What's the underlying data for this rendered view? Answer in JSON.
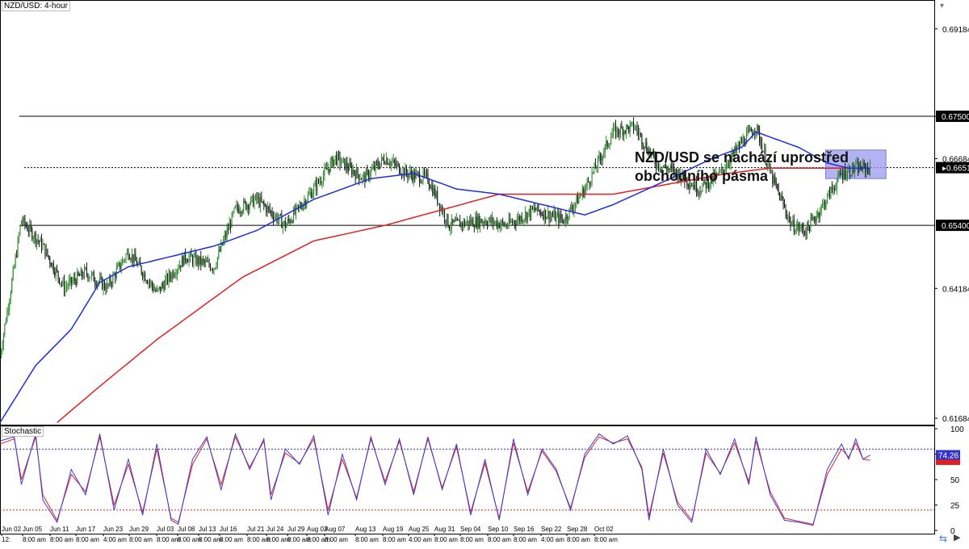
{
  "header": {
    "title": "NZD/USD: 4-hour",
    "stochastic_label": "Stochastic"
  },
  "annotation": {
    "line1": "NZD/USD se nachází uprostřed",
    "line2": "obchodního pásma"
  },
  "colors": {
    "bull": "#2e8b2e",
    "bear": "#1a1a1a",
    "sma_fast": "#1f2ed8",
    "sma_slow": "#e02020",
    "stoch_k": "#3b3bd6",
    "stoch_d": "#e02020",
    "highlight": "#9a9af0",
    "price_tag": "#000000"
  },
  "chart_data": [
    {
      "type": "candlestick",
      "title": "NZD/USD: 4-hour",
      "x_labels": [
        "Jun 02",
        "Jun 05",
        "Jun 11",
        "Jun 17",
        "Jun 23",
        "Jun 29",
        "Jul 03",
        "Jul 08",
        "Jul 13",
        "Jul 16",
        "Jul 21",
        "Jul 24",
        "Jul 29",
        "Aug 03",
        "Aug 07",
        "Aug 13",
        "Aug 19",
        "Aug 25",
        "Aug 31",
        "Sep 04",
        "Sep 10",
        "Sep 16",
        "Sep 22",
        "Sep 28",
        "Oct 02"
      ],
      "time_labels": [
        "12:",
        "8:00 am",
        "8:00 am",
        "8:00 am",
        "4:00 am",
        "8:00 am",
        "8:00 am",
        "8:00 am",
        "8:00 am",
        "8:00 am",
        "8:00 am",
        "8:00 am",
        "8:00 am",
        "8:00 am",
        "8:00 am",
        "8:00 am",
        "8:00 am",
        "4:00 am",
        "8:00 am",
        "8:00 am",
        "8:00 am",
        "8:00 am",
        "4:00 am",
        "8:00 am",
        "8:00 am"
      ],
      "y_ticks": [
        "0.69184",
        "0.67500",
        "0.66684",
        "0.64184",
        "0.61684"
      ],
      "y_ticks_values": [
        0.69184,
        0.675,
        0.66684,
        0.64184,
        0.61684
      ],
      "ylim": [
        0.6156,
        0.6974
      ],
      "horizontal_lines": [
        {
          "value": 0.675,
          "label": "0.67500",
          "style": "solid"
        },
        {
          "value": 0.654,
          "label": "0.65400",
          "style": "solid"
        },
        {
          "value": 0.66511,
          "label": "0.66511",
          "style": "dotted",
          "current_price": true
        }
      ],
      "series_close_anchors": {
        "note_days": "day index from Jun 02",
        "points": [
          [
            0,
            0.629
          ],
          [
            2,
            0.646
          ],
          [
            3,
            0.655
          ],
          [
            6,
            0.65
          ],
          [
            9,
            0.642
          ],
          [
            12,
            0.645
          ],
          [
            15,
            0.642
          ],
          [
            18,
            0.649
          ],
          [
            22,
            0.641
          ],
          [
            26,
            0.648
          ],
          [
            30,
            0.646
          ],
          [
            33,
            0.657
          ],
          [
            36,
            0.659
          ],
          [
            40,
            0.654
          ],
          [
            44,
            0.661
          ],
          [
            47,
            0.667
          ],
          [
            51,
            0.663
          ],
          [
            54,
            0.667
          ],
          [
            57,
            0.664
          ],
          [
            60,
            0.663
          ],
          [
            63,
            0.654
          ],
          [
            68,
            0.655
          ],
          [
            71,
            0.654
          ],
          [
            75,
            0.657
          ],
          [
            79,
            0.655
          ],
          [
            82,
            0.661
          ],
          [
            86,
            0.672
          ],
          [
            89,
            0.673
          ],
          [
            92,
            0.666
          ],
          [
            95,
            0.664
          ],
          [
            98,
            0.661
          ],
          [
            101,
            0.664
          ],
          [
            104,
            0.67
          ],
          [
            106,
            0.673
          ],
          [
            108,
            0.664
          ],
          [
            111,
            0.654
          ],
          [
            113,
            0.653
          ],
          [
            115,
            0.657
          ],
          [
            118,
            0.664
          ],
          [
            120,
            0.665
          ],
          [
            122,
            0.665
          ]
        ]
      },
      "sma_fast_anchors": [
        [
          0,
          0.616
        ],
        [
          5,
          0.627
        ],
        [
          10,
          0.634
        ],
        [
          14,
          0.643
        ],
        [
          18,
          0.646
        ],
        [
          24,
          0.648
        ],
        [
          30,
          0.65
        ],
        [
          36,
          0.653
        ],
        [
          44,
          0.659
        ],
        [
          52,
          0.663
        ],
        [
          58,
          0.664
        ],
        [
          64,
          0.661
        ],
        [
          70,
          0.66
        ],
        [
          76,
          0.658
        ],
        [
          82,
          0.656
        ],
        [
          86,
          0.658
        ],
        [
          94,
          0.663
        ],
        [
          100,
          0.667
        ],
        [
          104,
          0.669
        ],
        [
          106,
          0.672
        ],
        [
          108,
          0.671
        ],
        [
          112,
          0.669
        ],
        [
          116,
          0.666
        ],
        [
          119,
          0.665
        ],
        [
          122,
          0.665
        ]
      ],
      "sma_slow_anchors": [
        [
          8,
          0.616
        ],
        [
          14,
          0.623
        ],
        [
          22,
          0.632
        ],
        [
          28,
          0.638
        ],
        [
          34,
          0.644
        ],
        [
          44,
          0.651
        ],
        [
          54,
          0.654
        ],
        [
          62,
          0.657
        ],
        [
          70,
          0.66
        ],
        [
          78,
          0.66
        ],
        [
          86,
          0.66
        ],
        [
          94,
          0.662
        ],
        [
          102,
          0.664
        ],
        [
          108,
          0.665
        ],
        [
          116,
          0.665
        ],
        [
          122,
          0.665
        ]
      ],
      "highlight_box": {
        "from_day": 116,
        "to_day": 124,
        "ymin": 0.663,
        "ymax": 0.6685
      }
    },
    {
      "type": "line",
      "title": "Stochastic",
      "ylim": [
        0,
        100
      ],
      "y_ticks": [
        100,
        75,
        50,
        25,
        0
      ],
      "overbought": 80,
      "oversold": 20,
      "last_k": "74.26",
      "last_d": "69.12",
      "k_anchors": [
        [
          0,
          88
        ],
        [
          2,
          92
        ],
        [
          3,
          45
        ],
        [
          5,
          95
        ],
        [
          6,
          30
        ],
        [
          8,
          8
        ],
        [
          10,
          60
        ],
        [
          12,
          35
        ],
        [
          14,
          95
        ],
        [
          16,
          20
        ],
        [
          18,
          70
        ],
        [
          20,
          15
        ],
        [
          22,
          85
        ],
        [
          24,
          10
        ],
        [
          25,
          6
        ],
        [
          27,
          70
        ],
        [
          29,
          92
        ],
        [
          31,
          40
        ],
        [
          33,
          95
        ],
        [
          35,
          60
        ],
        [
          37,
          90
        ],
        [
          38,
          30
        ],
        [
          40,
          80
        ],
        [
          42,
          65
        ],
        [
          44,
          93
        ],
        [
          46,
          15
        ],
        [
          48,
          75
        ],
        [
          50,
          30
        ],
        [
          52,
          92
        ],
        [
          54,
          45
        ],
        [
          56,
          90
        ],
        [
          58,
          35
        ],
        [
          60,
          92
        ],
        [
          62,
          40
        ],
        [
          64,
          85
        ],
        [
          66,
          15
        ],
        [
          68,
          70
        ],
        [
          70,
          10
        ],
        [
          72,
          90
        ],
        [
          74,
          35
        ],
        [
          76,
          80
        ],
        [
          78,
          60
        ],
        [
          80,
          20
        ],
        [
          82,
          75
        ],
        [
          84,
          95
        ],
        [
          86,
          85
        ],
        [
          88,
          93
        ],
        [
          90,
          60
        ],
        [
          91,
          10
        ],
        [
          93,
          80
        ],
        [
          95,
          25
        ],
        [
          97,
          8
        ],
        [
          99,
          80
        ],
        [
          101,
          55
        ],
        [
          103,
          90
        ],
        [
          105,
          45
        ],
        [
          106,
          92
        ],
        [
          108,
          35
        ],
        [
          110,
          10
        ],
        [
          112,
          8
        ],
        [
          114,
          5
        ],
        [
          116,
          60
        ],
        [
          118,
          85
        ],
        [
          119,
          70
        ],
        [
          120,
          90
        ],
        [
          121,
          70
        ],
        [
          122,
          74
        ]
      ],
      "d_anchors": [
        [
          0,
          85
        ],
        [
          2,
          90
        ],
        [
          3,
          50
        ],
        [
          5,
          92
        ],
        [
          6,
          35
        ],
        [
          8,
          10
        ],
        [
          10,
          55
        ],
        [
          12,
          38
        ],
        [
          14,
          92
        ],
        [
          16,
          25
        ],
        [
          18,
          65
        ],
        [
          20,
          18
        ],
        [
          22,
          80
        ],
        [
          24,
          12
        ],
        [
          25,
          8
        ],
        [
          27,
          65
        ],
        [
          29,
          90
        ],
        [
          31,
          45
        ],
        [
          33,
          92
        ],
        [
          35,
          62
        ],
        [
          37,
          88
        ],
        [
          38,
          35
        ],
        [
          40,
          76
        ],
        [
          42,
          66
        ],
        [
          44,
          90
        ],
        [
          46,
          20
        ],
        [
          48,
          70
        ],
        [
          50,
          32
        ],
        [
          52,
          90
        ],
        [
          54,
          48
        ],
        [
          56,
          88
        ],
        [
          58,
          38
        ],
        [
          60,
          90
        ],
        [
          62,
          42
        ],
        [
          64,
          82
        ],
        [
          66,
          18
        ],
        [
          68,
          66
        ],
        [
          70,
          12
        ],
        [
          72,
          86
        ],
        [
          74,
          38
        ],
        [
          76,
          78
        ],
        [
          78,
          58
        ],
        [
          80,
          22
        ],
        [
          82,
          72
        ],
        [
          84,
          92
        ],
        [
          86,
          86
        ],
        [
          88,
          90
        ],
        [
          90,
          62
        ],
        [
          91,
          14
        ],
        [
          93,
          76
        ],
        [
          95,
          28
        ],
        [
          97,
          10
        ],
        [
          99,
          76
        ],
        [
          101,
          56
        ],
        [
          103,
          86
        ],
        [
          105,
          48
        ],
        [
          106,
          88
        ],
        [
          108,
          38
        ],
        [
          110,
          12
        ],
        [
          112,
          9
        ],
        [
          114,
          6
        ],
        [
          116,
          55
        ],
        [
          118,
          80
        ],
        [
          119,
          72
        ],
        [
          120,
          86
        ],
        [
          121,
          70
        ],
        [
          122,
          69
        ]
      ]
    }
  ]
}
